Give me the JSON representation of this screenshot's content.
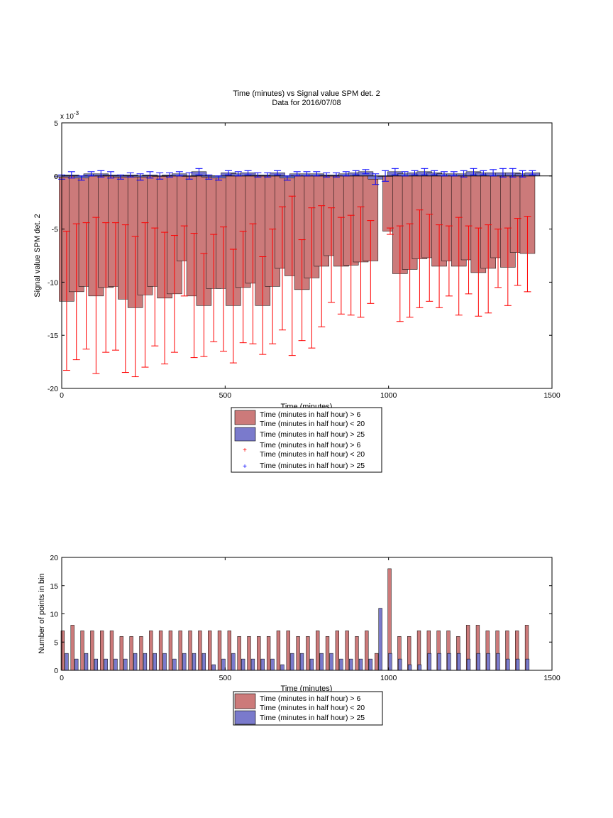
{
  "chart_data": [
    {
      "type": "bar",
      "title": "Time (minutes) vs Signal value SPM det. 2",
      "subtitle": "Data for 2016/07/08",
      "xlabel": "Time (minutes)",
      "ylabel": "Signal value SPM det. 2",
      "xlim": [
        0,
        1500
      ],
      "ylim": [
        -20,
        5
      ],
      "y_exponent_label": "x 10",
      "y_exponent_power": "-3",
      "xticks": [
        "0",
        "500",
        "1000",
        "1500"
      ],
      "yticks": [
        "-20",
        "-15",
        "-10",
        "-5",
        "0",
        "5"
      ],
      "grid": false,
      "legend_placement": "below",
      "legend": [
        {
          "marker": "patch",
          "color": "#cc7a7a",
          "lines": [
            "Time (minutes in half hour) > 6",
            "Time (minutes in half hour) < 20"
          ]
        },
        {
          "marker": "patch",
          "color": "#7a7acc",
          "lines": [
            "Time (minutes in half hour) > 25"
          ]
        },
        {
          "marker": "+",
          "color": "#ff0000",
          "lines": [
            "Time (minutes in half hour) > 6",
            "Time (minutes in half hour) < 20"
          ]
        },
        {
          "marker": "+",
          "color": "#0000ff",
          "lines": [
            "Time (minutes in half hour) > 25"
          ]
        }
      ],
      "colors": {
        "red_bar": "#cc7a7a",
        "blue_bar": "#7a7acc",
        "red_err": "#ff0000",
        "blue_err": "#0000ff"
      },
      "red_series": {
        "name": "Time (minutes in half hour) > 6, Time (minutes in half hour) < 20",
        "x": [
          15,
          45,
          75,
          105,
          135,
          165,
          195,
          225,
          255,
          285,
          315,
          345,
          375,
          405,
          435,
          465,
          495,
          525,
          555,
          585,
          615,
          645,
          675,
          705,
          735,
          765,
          795,
          825,
          855,
          885,
          915,
          945,
          1005,
          1035,
          1065,
          1095,
          1125,
          1155,
          1185,
          1215,
          1245,
          1275,
          1305,
          1335,
          1365,
          1395,
          1425
        ],
        "y": [
          -11.8,
          -10.9,
          -10.4,
          -11.3,
          -10.5,
          -10.4,
          -11.6,
          -12.4,
          -11.2,
          -10.4,
          -11.5,
          -11.1,
          -8.0,
          -11.3,
          -12.2,
          -10.6,
          -10.6,
          -12.2,
          -10.5,
          -10.1,
          -12.2,
          -10.4,
          -8.7,
          -9.4,
          -10.7,
          -9.6,
          -8.5,
          -7.5,
          -8.5,
          -8.4,
          -8.1,
          -8.0,
          -5.2,
          -9.2,
          -8.8,
          -7.8,
          -7.7,
          -8.5,
          -8.0,
          -8.5,
          -7.9,
          -9.1,
          -8.7,
          -7.7,
          -8.6,
          -7.2,
          -7.3
        ],
        "err_low": [
          -18.3,
          -17.3,
          -16.3,
          -18.6,
          -16.6,
          -16.4,
          -18.5,
          -18.9,
          -18.0,
          -16.0,
          -17.7,
          -16.6,
          -11.3,
          -17.1,
          -17.0,
          -15.6,
          -16.5,
          -17.6,
          -15.7,
          -15.8,
          -16.8,
          -15.8,
          -14.5,
          -16.9,
          -15.5,
          -16.2,
          -14.2,
          -11.9,
          -13.0,
          -13.1,
          -13.3,
          -12.0,
          -5.5,
          -13.7,
          -13.3,
          -12.4,
          -11.8,
          -12.4,
          -11.3,
          -13.1,
          -11.1,
          -13.2,
          -12.9,
          -10.5,
          -12.2,
          -10.3,
          -10.9
        ],
        "err_high": [
          -5.2,
          -4.5,
          -4.4,
          -3.9,
          -4.4,
          -4.4,
          -4.6,
          -5.7,
          -4.4,
          -4.9,
          -5.3,
          -5.6,
          -4.7,
          -5.4,
          -7.3,
          -5.5,
          -4.8,
          -6.9,
          -5.2,
          -4.5,
          -7.6,
          -5.0,
          -2.9,
          -1.9,
          -6.0,
          -3.0,
          -2.8,
          -3.0,
          -3.9,
          -3.7,
          -2.9,
          -4.2,
          -4.9,
          -4.7,
          -4.5,
          -3.2,
          -3.6,
          -4.6,
          -4.7,
          -3.9,
          -4.7,
          -4.9,
          -4.6,
          -5.0,
          -4.9,
          -4.0,
          -3.8
        ]
      },
      "blue_series": {
        "name": "Time (minutes in half hour) > 25",
        "x": [
          0,
          30,
          60,
          90,
          120,
          150,
          180,
          210,
          240,
          270,
          300,
          330,
          360,
          390,
          420,
          450,
          480,
          510,
          540,
          570,
          600,
          630,
          660,
          690,
          720,
          750,
          780,
          810,
          840,
          870,
          900,
          930,
          960,
          990,
          1020,
          1050,
          1080,
          1110,
          1140,
          1170,
          1200,
          1230,
          1260,
          1290,
          1320,
          1350,
          1380,
          1410,
          1440
        ],
        "y": [
          -0.1,
          0.1,
          -0.2,
          0.2,
          0.2,
          0.1,
          -0.1,
          0.1,
          -0.1,
          0.1,
          0.0,
          0.1,
          0.2,
          0.0,
          0.4,
          -0.1,
          -0.2,
          0.3,
          0.2,
          0.3,
          0.1,
          0.1,
          0.3,
          -0.2,
          0.2,
          0.2,
          0.2,
          0.1,
          0.1,
          0.2,
          0.3,
          0.4,
          -0.3,
          0.0,
          0.4,
          0.2,
          0.3,
          0.4,
          0.3,
          0.2,
          0.2,
          0.2,
          0.4,
          0.3,
          0.3,
          0.3,
          0.3,
          0.2,
          0.3
        ],
        "err": [
          0.2,
          0.3,
          0.2,
          0.2,
          0.3,
          0.3,
          0.2,
          0.2,
          0.3,
          0.3,
          0.3,
          0.2,
          0.2,
          0.3,
          0.3,
          0.2,
          0.2,
          0.2,
          0.2,
          0.2,
          0.2,
          0.2,
          0.2,
          0.2,
          0.2,
          0.2,
          0.2,
          0.2,
          0.2,
          0.2,
          0.2,
          0.2,
          0.5,
          0.5,
          0.3,
          0.2,
          0.2,
          0.3,
          0.2,
          0.2,
          0.2,
          0.3,
          0.3,
          0.2,
          0.3,
          0.4,
          0.4,
          0.3,
          0.2
        ]
      }
    },
    {
      "type": "bar",
      "title": "",
      "xlabel": "Time (minutes)",
      "ylabel": "Number of points in bin",
      "xlim": [
        0,
        1500
      ],
      "ylim": [
        0,
        20
      ],
      "xticks": [
        "0",
        "500",
        "1000",
        "1500"
      ],
      "yticks": [
        "0",
        "5",
        "10",
        "15",
        "20"
      ],
      "grid": false,
      "legend_placement": "below",
      "legend": [
        {
          "marker": "patch",
          "color": "#cc7a7a",
          "lines": [
            "Time (minutes in half hour) > 6",
            "Time (minutes in half hour) < 20"
          ]
        },
        {
          "marker": "patch",
          "color": "#7a7acc",
          "lines": [
            "Time (minutes in half hour) > 25"
          ]
        }
      ],
      "red_counts": {
        "x": [
          3,
          33,
          63,
          93,
          123,
          153,
          183,
          213,
          243,
          273,
          303,
          333,
          363,
          393,
          423,
          453,
          483,
          513,
          543,
          573,
          603,
          633,
          663,
          693,
          723,
          753,
          783,
          813,
          843,
          873,
          903,
          933,
          963,
          1003,
          1033,
          1063,
          1093,
          1123,
          1153,
          1183,
          1213,
          1243,
          1273,
          1303,
          1333,
          1363,
          1393,
          1423
        ],
        "values": [
          7,
          8,
          7,
          7,
          7,
          7,
          6,
          6,
          6,
          7,
          7,
          7,
          7,
          7,
          7,
          7,
          7,
          7,
          6,
          6,
          6,
          6,
          7,
          7,
          6,
          6,
          7,
          6,
          7,
          7,
          6,
          7,
          3,
          18,
          6,
          6,
          7,
          7,
          7,
          7,
          6,
          8,
          8,
          7,
          7,
          7,
          7,
          8
        ]
      },
      "blue_counts": {
        "x": [
          15,
          45,
          75,
          105,
          135,
          165,
          195,
          225,
          255,
          285,
          315,
          345,
          375,
          405,
          435,
          465,
          495,
          525,
          555,
          585,
          615,
          645,
          675,
          705,
          735,
          765,
          795,
          825,
          855,
          885,
          915,
          945,
          975,
          1005,
          1035,
          1065,
          1095,
          1125,
          1155,
          1185,
          1215,
          1245,
          1275,
          1305,
          1335,
          1365,
          1395,
          1425
        ],
        "values": [
          3,
          2,
          3,
          2,
          2,
          2,
          2,
          3,
          3,
          3,
          3,
          2,
          3,
          3,
          3,
          1,
          2,
          3,
          2,
          2,
          2,
          2,
          1,
          3,
          3,
          2,
          3,
          3,
          2,
          2,
          2,
          2,
          11,
          3,
          2,
          1,
          1,
          3,
          3,
          3,
          3,
          2,
          3,
          3,
          3,
          2,
          2,
          2
        ]
      }
    }
  ]
}
